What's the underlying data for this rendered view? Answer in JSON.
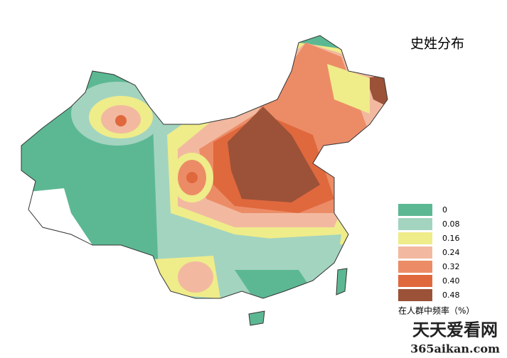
{
  "title": "史姓分布",
  "legend": {
    "title": "在人群中频率（%）",
    "items": [
      {
        "value": 0,
        "color": "#5cb893"
      },
      {
        "value": 0.08,
        "color": "#a3d4c0"
      },
      {
        "value": 0.16,
        "color": "#efec8a"
      },
      {
        "value": 0.24,
        "color": "#f2b9a0"
      },
      {
        "value": 0.32,
        "color": "#ec8c67"
      },
      {
        "value": 0.4,
        "label": "0.40",
        "color": "#e0683d"
      },
      {
        "value": 0.48,
        "color": "#9b5238"
      }
    ]
  },
  "watermark": {
    "text": "天天爱看网",
    "url": "365aikan.com"
  }
}
